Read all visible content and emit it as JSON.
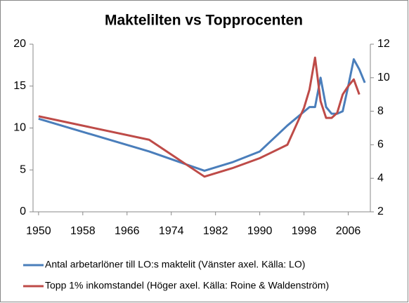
{
  "chart_data": {
    "type": "line",
    "title": "Maktelilten vs Topprocenten",
    "xlim": [
      1949,
      2010
    ],
    "xticks": [
      1950,
      1958,
      1966,
      1974,
      1982,
      1990,
      1998,
      2006
    ],
    "ylim": [
      0,
      20
    ],
    "yticks": [
      0,
      5,
      10,
      15,
      20
    ],
    "y2lim": [
      2,
      12
    ],
    "y2ticks": [
      2,
      4,
      6,
      8,
      10,
      12
    ],
    "series": [
      {
        "name": "Antal arbetarlöner till LO:s maktelit (Vänster axel. Källa: LO)",
        "color": "#4a7ebb",
        "x": [
          1950,
          1970,
          1980,
          1985,
          1990,
          1995,
          1999,
          2000,
          2001,
          2002,
          2003,
          2004,
          2005,
          2006,
          2007,
          2008,
          2009
        ],
        "values": [
          11.1,
          7.2,
          4.9,
          5.9,
          7.2,
          10.3,
          12.5,
          12.5,
          16.0,
          12.5,
          11.7,
          11.7,
          12.0,
          15.0,
          18.2,
          17.0,
          15.4
        ]
      },
      {
        "name": "Topp 1% inkomstandel (Höger axel. Källa: Roine & Waldenström)",
        "color": "#be4b48",
        "axis": "y2",
        "x": [
          1950,
          1970,
          1980,
          1985,
          1990,
          1995,
          1998,
          1999,
          2000,
          2001,
          2002,
          2003,
          2004,
          2005,
          2006,
          2007,
          2008
        ],
        "values": [
          7.7,
          6.3,
          4.1,
          4.6,
          5.2,
          6.0,
          8.2,
          9.3,
          11.2,
          8.6,
          7.6,
          7.6,
          7.9,
          9.0,
          9.5,
          9.9,
          9.0
        ]
      }
    ]
  }
}
